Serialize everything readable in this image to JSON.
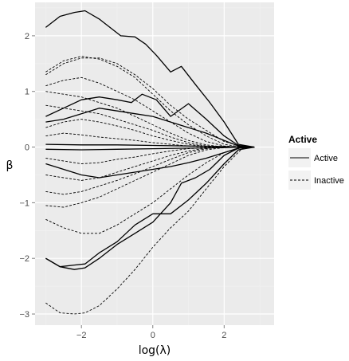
{
  "chart_data": {
    "type": "line",
    "title": "",
    "xlabel": "log(λ)",
    "ylabel": "β",
    "xlim": [
      -3.3,
      3.4
    ],
    "ylim": [
      -3.2,
      2.6
    ],
    "xticks": [
      -2,
      0,
      2
    ],
    "xtick_labels": [
      "−2",
      "0",
      "2"
    ],
    "yticks": [
      -3,
      -2,
      -1,
      0,
      1,
      2
    ],
    "ytick_labels": [
      "−3",
      "−2",
      "−1",
      "0",
      "1",
      "2"
    ],
    "grid": true,
    "legend": {
      "title": "Active",
      "position": "right",
      "entries": [
        {
          "label": "Active",
          "style": "solid"
        },
        {
          "label": "Inactive",
          "style": "dashed"
        }
      ]
    },
    "series": [
      {
        "style": "solid",
        "x": [
          -3.0,
          -2.6,
          -2.2,
          -1.9,
          -1.5,
          -1.2,
          -0.9,
          -0.5,
          -0.2,
          0.1,
          0.5,
          0.8,
          1.2,
          1.6,
          2.0,
          2.4,
          2.85
        ],
        "y": [
          2.15,
          2.35,
          2.42,
          2.45,
          2.3,
          2.15,
          2.0,
          1.98,
          1.85,
          1.65,
          1.35,
          1.45,
          1.12,
          0.8,
          0.45,
          0.05,
          0.0
        ]
      },
      {
        "style": "solid",
        "x": [
          -3.0,
          -2.5,
          -2.0,
          -1.5,
          -1.0,
          -0.6,
          -0.3,
          0.1,
          0.5,
          1.0,
          1.5,
          2.0,
          2.4,
          2.85
        ],
        "y": [
          0.55,
          0.7,
          0.85,
          0.9,
          0.85,
          0.8,
          0.95,
          0.85,
          0.55,
          0.78,
          0.5,
          0.2,
          0.03,
          0.0
        ]
      },
      {
        "style": "solid",
        "x": [
          -3.0,
          -2.5,
          -2.0,
          -1.5,
          -1.0,
          -0.5,
          0.0,
          0.5,
          1.0,
          1.5,
          2.0,
          2.4,
          2.85
        ],
        "y": [
          0.45,
          0.5,
          0.6,
          0.7,
          0.65,
          0.6,
          0.55,
          0.45,
          0.35,
          0.25,
          0.12,
          0.02,
          0.0
        ]
      },
      {
        "style": "solid",
        "x": [
          -3.0,
          -2.0,
          -1.0,
          0.0,
          1.0,
          2.0,
          2.4,
          2.85
        ],
        "y": [
          0.05,
          0.04,
          0.04,
          0.03,
          0.02,
          0.01,
          0.0,
          0.0
        ]
      },
      {
        "style": "solid",
        "x": [
          -3.0,
          -2.0,
          -1.0,
          0.0,
          1.0,
          2.0,
          2.4,
          2.85
        ],
        "y": [
          -0.04,
          -0.05,
          -0.04,
          -0.03,
          -0.02,
          -0.01,
          0.0,
          0.0
        ]
      },
      {
        "style": "solid",
        "x": [
          -3.0,
          -2.5,
          -2.0,
          -1.5,
          -1.0,
          -0.5,
          0.0,
          0.5,
          1.0,
          1.5,
          2.0,
          2.4,
          2.85
        ],
        "y": [
          -0.3,
          -0.4,
          -0.5,
          -0.55,
          -0.5,
          -0.45,
          -0.4,
          -0.35,
          -0.28,
          -0.2,
          -0.1,
          -0.02,
          0.0
        ]
      },
      {
        "style": "solid",
        "x": [
          -3.0,
          -2.6,
          -2.2,
          -1.9,
          -1.5,
          -1.0,
          -0.5,
          0.0,
          0.5,
          1.0,
          1.5,
          2.0,
          2.4,
          2.85
        ],
        "y": [
          -2.0,
          -2.15,
          -2.12,
          -2.1,
          -1.9,
          -1.7,
          -1.4,
          -1.2,
          -1.2,
          -0.95,
          -0.65,
          -0.3,
          -0.05,
          0.0
        ]
      },
      {
        "style": "solid",
        "x": [
          -3.0,
          -2.6,
          -2.2,
          -1.9,
          -1.5,
          -1.0,
          -0.5,
          0.0,
          0.5,
          0.8,
          1.2,
          1.6,
          2.0,
          2.4,
          2.85
        ],
        "y": [
          -2.0,
          -2.15,
          -2.2,
          -2.17,
          -2.0,
          -1.75,
          -1.55,
          -1.35,
          -1.0,
          -0.65,
          -0.55,
          -0.4,
          -0.15,
          -0.02,
          0.0
        ]
      },
      {
        "style": "dashed",
        "x": [
          -3.0,
          -2.5,
          -2.0,
          -1.5,
          -1.0,
          -0.5,
          0.0,
          0.5,
          1.0,
          1.5,
          2.0,
          2.5,
          2.85
        ],
        "y": [
          1.3,
          1.5,
          1.6,
          1.6,
          1.5,
          1.3,
          1.05,
          0.75,
          0.5,
          0.3,
          0.1,
          0.01,
          0.0
        ]
      },
      {
        "style": "dashed",
        "x": [
          -3.0,
          -2.5,
          -2.0,
          -1.5,
          -1.0,
          -0.5,
          0.0,
          0.5,
          1.0,
          1.5,
          2.0,
          2.5,
          2.85
        ],
        "y": [
          1.35,
          1.55,
          1.63,
          1.58,
          1.45,
          1.25,
          0.95,
          0.65,
          0.4,
          0.2,
          0.05,
          0.0,
          0.0
        ]
      },
      {
        "style": "dashed",
        "x": [
          -3.0,
          -2.5,
          -2.0,
          -1.5,
          -1.0,
          -0.5,
          0.0,
          0.5,
          1.0,
          1.5,
          2.0,
          2.5,
          2.85
        ],
        "y": [
          1.1,
          1.2,
          1.25,
          1.15,
          1.0,
          0.85,
          0.65,
          0.45,
          0.25,
          0.1,
          0.02,
          0.0,
          0.0
        ]
      },
      {
        "style": "dashed",
        "x": [
          -3.0,
          -2.5,
          -2.0,
          -1.5,
          -1.0,
          -0.5,
          0.0,
          0.5,
          1.0,
          1.5,
          2.0,
          2.5,
          2.85
        ],
        "y": [
          1.0,
          0.95,
          0.9,
          0.8,
          0.7,
          0.55,
          0.4,
          0.25,
          0.12,
          0.04,
          0.0,
          0.0,
          0.0
        ]
      },
      {
        "style": "dashed",
        "x": [
          -3.0,
          -2.5,
          -2.0,
          -1.5,
          -1.0,
          -0.5,
          0.0,
          0.5,
          1.0,
          1.5,
          2.0,
          2.5,
          2.85
        ],
        "y": [
          0.75,
          0.7,
          0.65,
          0.6,
          0.5,
          0.4,
          0.3,
          0.18,
          0.08,
          0.02,
          0.0,
          0.0,
          0.0
        ]
      },
      {
        "style": "dashed",
        "x": [
          -3.0,
          -2.5,
          -2.0,
          -1.5,
          -1.0,
          -0.5,
          0.0,
          0.5,
          1.0,
          1.5,
          2.0,
          2.5,
          2.85
        ],
        "y": [
          0.35,
          0.45,
          0.5,
          0.45,
          0.38,
          0.3,
          0.2,
          0.12,
          0.05,
          0.01,
          0.0,
          0.0,
          0.0
        ]
      },
      {
        "style": "dashed",
        "x": [
          -3.0,
          -2.5,
          -2.0,
          -1.5,
          -1.0,
          -0.5,
          0.0,
          0.5,
          1.0,
          1.5,
          2.0,
          2.5,
          2.85
        ],
        "y": [
          0.2,
          0.25,
          0.22,
          0.18,
          0.15,
          0.12,
          0.08,
          0.05,
          0.02,
          0.0,
          0.0,
          0.0,
          0.0
        ]
      },
      {
        "style": "dashed",
        "x": [
          -3.0,
          -2.5,
          -2.0,
          -1.5,
          -1.0,
          -0.5,
          0.0,
          0.5,
          1.0,
          1.5,
          2.0,
          2.5,
          2.85
        ],
        "y": [
          -0.2,
          -0.25,
          -0.3,
          -0.28,
          -0.22,
          -0.18,
          -0.12,
          -0.07,
          -0.03,
          -0.01,
          0.0,
          0.0,
          0.0
        ]
      },
      {
        "style": "dashed",
        "x": [
          -3.0,
          -2.5,
          -2.0,
          -1.5,
          -1.0,
          -0.5,
          0.0,
          0.5,
          1.0,
          1.5,
          2.0,
          2.5,
          2.85
        ],
        "y": [
          -0.5,
          -0.55,
          -0.6,
          -0.55,
          -0.45,
          -0.35,
          -0.25,
          -0.15,
          -0.07,
          -0.02,
          0.0,
          0.0,
          0.0
        ]
      },
      {
        "style": "dashed",
        "x": [
          -3.0,
          -2.5,
          -2.0,
          -1.5,
          -1.0,
          -0.5,
          0.0,
          0.5,
          1.0,
          1.5,
          2.0,
          2.5,
          2.85
        ],
        "y": [
          -0.8,
          -0.85,
          -0.8,
          -0.7,
          -0.6,
          -0.48,
          -0.35,
          -0.22,
          -0.1,
          -0.03,
          0.0,
          0.0,
          0.0
        ]
      },
      {
        "style": "dashed",
        "x": [
          -3.0,
          -2.5,
          -2.0,
          -1.5,
          -1.0,
          -0.5,
          0.0,
          0.5,
          1.0,
          1.5,
          2.0,
          2.5,
          2.85
        ],
        "y": [
          -1.05,
          -1.08,
          -1.0,
          -0.9,
          -0.75,
          -0.6,
          -0.45,
          -0.3,
          -0.15,
          -0.05,
          -0.01,
          0.0,
          0.0
        ]
      },
      {
        "style": "dashed",
        "x": [
          -3.0,
          -2.5,
          -2.0,
          -1.5,
          -1.0,
          -0.5,
          0.0,
          0.5,
          1.0,
          1.5,
          2.0,
          2.5,
          2.85
        ],
        "y": [
          -1.3,
          -1.45,
          -1.55,
          -1.55,
          -1.4,
          -1.2,
          -1.0,
          -0.75,
          -0.5,
          -0.28,
          -0.1,
          -0.01,
          0.0
        ]
      },
      {
        "style": "dashed",
        "x": [
          -3.0,
          -2.6,
          -2.2,
          -1.9,
          -1.5,
          -1.0,
          -0.5,
          0.0,
          0.5,
          1.0,
          1.5,
          2.0,
          2.5,
          2.85
        ],
        "y": [
          -2.8,
          -2.98,
          -3.0,
          -2.98,
          -2.85,
          -2.55,
          -2.2,
          -1.8,
          -1.45,
          -1.15,
          -0.75,
          -0.35,
          -0.03,
          0.0
        ]
      }
    ]
  }
}
